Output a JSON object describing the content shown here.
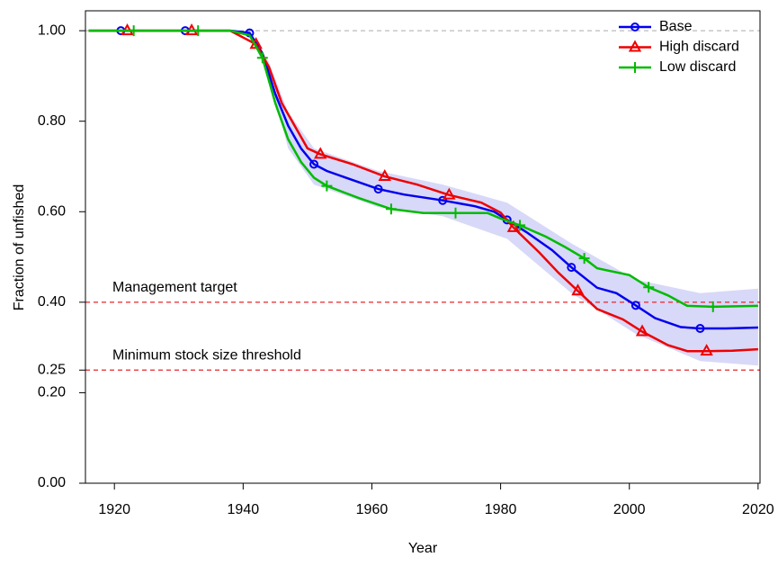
{
  "chart_data": {
    "type": "line",
    "x_label": "Year",
    "y_label": "Fraction of unfished",
    "xlim": [
      1915.5,
      2020.3
    ],
    "ylim": [
      0,
      1.044
    ],
    "xticks": [
      1920,
      1940,
      1960,
      1980,
      2000,
      2020
    ],
    "yticks": [
      {
        "value": 0,
        "label": "0.00"
      },
      {
        "value": 0.2,
        "label": "0.20"
      },
      {
        "value": 0.25,
        "label": "0.25"
      },
      {
        "value": 0.4,
        "label": "0.40"
      },
      {
        "value": 0.6,
        "label": "0.60"
      },
      {
        "value": 0.8,
        "label": "0.80"
      },
      {
        "value": 1.0,
        "label": "1.00"
      }
    ],
    "legend": "top-right",
    "band": {
      "color": "#d8d8f8",
      "x": [
        1916,
        1938,
        1941,
        1944,
        1947,
        1951,
        1961,
        1971,
        1981,
        1991,
        2001,
        2011,
        2020
      ],
      "upper": [
        1.0,
        1.0,
        0.998,
        0.93,
        0.82,
        0.74,
        0.69,
        0.66,
        0.62,
        0.53,
        0.45,
        0.42,
        0.43
      ],
      "lower": [
        1.0,
        1.0,
        0.99,
        0.9,
        0.74,
        0.66,
        0.61,
        0.59,
        0.54,
        0.42,
        0.33,
        0.27,
        0.26
      ]
    },
    "hlines": [
      {
        "y": 1.0,
        "color": "#bbbbbb"
      },
      {
        "y": 0.4,
        "color": "#e8262a",
        "label": "Management target"
      },
      {
        "y": 0.25,
        "color": "#e8262a",
        "label": "Minimum stock size threshold"
      }
    ],
    "series": [
      {
        "name": "Base",
        "color": "#0000ee",
        "marker": "circle",
        "x": [
          1916,
          1930,
          1938,
          1941,
          1943,
          1945,
          1947,
          1949,
          1951,
          1953,
          1956,
          1961,
          1965,
          1971,
          1976,
          1979,
          1981,
          1984,
          1988,
          1991,
          1995,
          1998,
          2001,
          2004,
          2008,
          2011,
          2015,
          2020
        ],
        "values": [
          1.0,
          1.0,
          1.0,
          0.995,
          0.95,
          0.86,
          0.79,
          0.74,
          0.705,
          0.69,
          0.675,
          0.65,
          0.638,
          0.625,
          0.612,
          0.6,
          0.582,
          0.555,
          0.515,
          0.477,
          0.432,
          0.42,
          0.393,
          0.365,
          0.345,
          0.342,
          0.342,
          0.344
        ],
        "markers": [
          1921,
          1931,
          1941,
          1951,
          1961,
          1971,
          1981,
          1991,
          2001,
          2011
        ]
      },
      {
        "name": "High discard",
        "color": "#ee0000",
        "marker": "triangle",
        "x": [
          1916,
          1938,
          1942,
          1944,
          1946,
          1948,
          1950,
          1952,
          1957,
          1962,
          1967,
          1972,
          1977,
          1980,
          1982,
          1986,
          1989,
          1992,
          1995,
          1999,
          2002,
          2006,
          2009,
          2012,
          2016,
          2020
        ],
        "values": [
          1.0,
          1.0,
          0.97,
          0.92,
          0.84,
          0.79,
          0.74,
          0.727,
          0.705,
          0.678,
          0.66,
          0.637,
          0.62,
          0.598,
          0.565,
          0.51,
          0.465,
          0.425,
          0.385,
          0.362,
          0.335,
          0.305,
          0.292,
          0.292,
          0.293,
          0.296
        ],
        "markers": [
          1922,
          1932,
          1942,
          1952,
          1962,
          1972,
          1982,
          1992,
          2002,
          2012
        ]
      },
      {
        "name": "Low discard",
        "color": "#00bb00",
        "marker": "plus",
        "x": [
          1916,
          1938,
          1941,
          1943,
          1945,
          1947,
          1949,
          1951,
          1953,
          1958,
          1963,
          1968,
          1973,
          1978,
          1980,
          1983,
          1987,
          1990,
          1993,
          1995,
          2000,
          2003,
          2006,
          2009,
          2013,
          2020
        ],
        "values": [
          1.0,
          1.0,
          0.99,
          0.94,
          0.84,
          0.76,
          0.71,
          0.675,
          0.657,
          0.63,
          0.606,
          0.597,
          0.597,
          0.597,
          0.585,
          0.57,
          0.545,
          0.522,
          0.497,
          0.475,
          0.46,
          0.433,
          0.415,
          0.392,
          0.39,
          0.392
        ],
        "markers": [
          1923,
          1933,
          1943,
          1953,
          1963,
          1973,
          1983,
          1993,
          2003,
          2013
        ]
      }
    ]
  }
}
